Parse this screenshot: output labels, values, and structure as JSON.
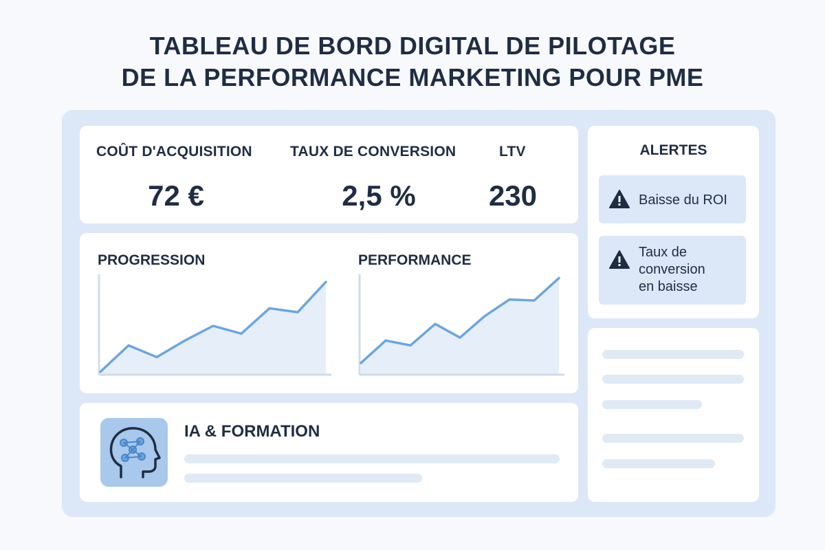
{
  "header": {
    "title_line1": "TABLEAU DE BORD DIGITAL DE PILOTAGE",
    "title_line2": "DE LA PERFORMANCE MARKETING POUR PME"
  },
  "kpis": [
    {
      "label": "COÛT D'ACQUISITION",
      "value": "72 €"
    },
    {
      "label": "TAUX DE CONVERSION",
      "value": "2,5 %"
    },
    {
      "label": "LTV",
      "value": "230"
    }
  ],
  "charts": {
    "progression": {
      "title": "PROGRESSION",
      "icon": "line-chart"
    },
    "performance": {
      "title": "PERFORMANCE",
      "icon": "line-chart"
    }
  },
  "chart_data": [
    {
      "type": "area",
      "title": "PROGRESSION",
      "x": [
        0,
        1,
        2,
        3,
        4,
        5,
        6,
        7,
        8
      ],
      "values": [
        3,
        30,
        18,
        35,
        50,
        42,
        68,
        64,
        95
      ],
      "ylim": [
        0,
        100
      ]
    },
    {
      "type": "area",
      "title": "PERFORMANCE",
      "x": [
        0,
        1,
        2,
        3,
        4,
        5,
        6,
        7,
        8
      ],
      "values": [
        12,
        35,
        30,
        52,
        38,
        60,
        77,
        76,
        99
      ],
      "ylim": [
        0,
        100
      ]
    }
  ],
  "ia": {
    "title": "IA & FORMATION",
    "icon": "brain-head-icon"
  },
  "alerts": {
    "title": "ALERTES",
    "items": [
      {
        "lines": [
          "Baisse du ROI"
        ],
        "icon": "warning-icon"
      },
      {
        "lines": [
          "Taux de",
          "conversion",
          "en baisse"
        ],
        "icon": "warning-icon"
      }
    ]
  },
  "colors": {
    "accent": "#6aa6e0",
    "fill": "#e6eff9",
    "frame": "#dce8f7",
    "text": "#1f2d44"
  }
}
